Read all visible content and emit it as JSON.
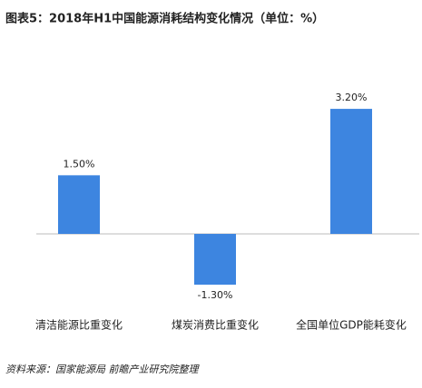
{
  "chart_data": {
    "type": "bar",
    "title": "图表5：2018年H1中国能源消耗结构变化情况（单位：%）",
    "categories": [
      "清洁能源比重变化",
      "煤炭消费比重变化",
      "全国单位GDP能耗变化"
    ],
    "values": [
      1.5,
      -1.3,
      3.2
    ],
    "value_labels": [
      "1.50%",
      "-1.30%",
      "3.20%"
    ],
    "color": "#3d85e0",
    "source": "资料来源：国家能源局  前瞻产业研究院整理"
  }
}
